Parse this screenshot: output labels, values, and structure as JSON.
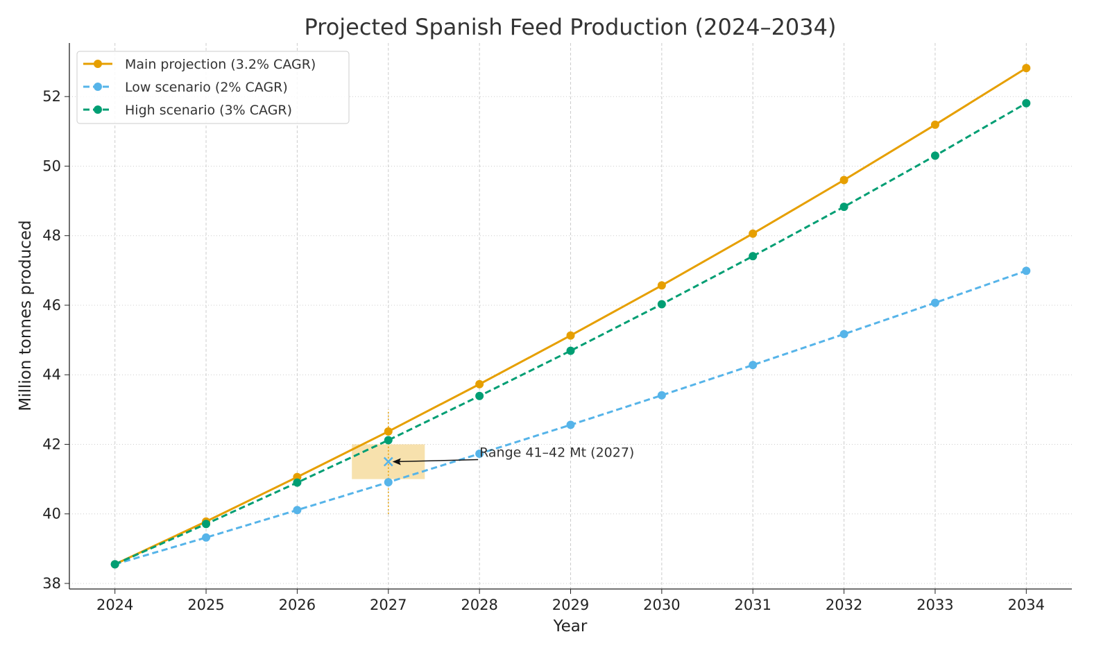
{
  "chart_data": {
    "type": "line",
    "title": "Projected Spanish Feed Production (2024–2034)",
    "xlabel": "Year",
    "ylabel": "Million tonnes produced",
    "x": [
      2024,
      2025,
      2026,
      2027,
      2028,
      2029,
      2030,
      2031,
      2032,
      2033,
      2034
    ],
    "xlim": [
      2023.5,
      2034.5
    ],
    "ylim": [
      37.84,
      53.54
    ],
    "xticks": [
      "2024",
      "2025",
      "2026",
      "2027",
      "2028",
      "2029",
      "2030",
      "2031",
      "2032",
      "2033",
      "2034"
    ],
    "yticks": [
      "38",
      "40",
      "42",
      "44",
      "46",
      "48",
      "50",
      "52"
    ],
    "grid": true,
    "legend_position": "top-left",
    "series": [
      {
        "name": "Main projection (3.2% CAGR)",
        "color": "#E69F00",
        "style": "solid",
        "values": [
          38.55,
          39.78,
          41.06,
          42.37,
          43.73,
          45.13,
          46.57,
          48.06,
          49.6,
          51.19,
          52.82
        ]
      },
      {
        "name": "Low scenario (2% CAGR)",
        "color": "#56B4E9",
        "style": "dashed",
        "values": [
          38.55,
          39.32,
          40.11,
          40.91,
          41.73,
          42.56,
          43.41,
          44.28,
          45.17,
          46.07,
          46.99
        ]
      },
      {
        "name": "High scenario (3% CAGR)",
        "color": "#009E73",
        "style": "dashed",
        "values": [
          38.55,
          39.71,
          40.9,
          42.12,
          43.39,
          44.69,
          46.03,
          47.41,
          48.83,
          50.3,
          51.81
        ]
      }
    ],
    "annotation": {
      "text": "Range 41–42 Mt (2027)",
      "text_at": [
        2028,
        41.8
      ],
      "marker": [
        2027,
        41.5
      ],
      "shaded_range": {
        "x": [
          2026.6,
          2027.4
        ],
        "y": [
          41,
          42
        ],
        "color": "#F5D998"
      },
      "vline": {
        "x": 2027,
        "y": [
          40,
          43
        ],
        "color": "#E69F00"
      }
    }
  }
}
